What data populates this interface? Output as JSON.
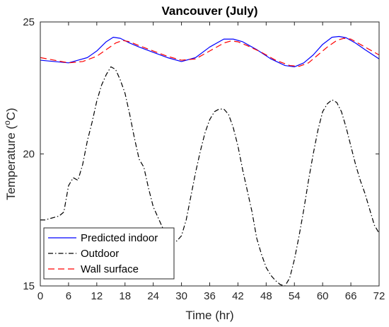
{
  "chart_data": {
    "type": "line",
    "title": "Vancouver (July)",
    "xlabel": "Time (hr)",
    "ylabel_main": "Temperature (",
    "ylabel_sup": "o",
    "ylabel_end": "C)",
    "xlim": [
      0,
      72
    ],
    "ylim": [
      15,
      25
    ],
    "xticks": [
      0,
      6,
      12,
      18,
      24,
      30,
      36,
      42,
      48,
      54,
      60,
      66,
      72
    ],
    "yticks": [
      15,
      20,
      25
    ],
    "grid": false,
    "legend_position": "bottom-left",
    "series": [
      {
        "name": "Predicted indoor",
        "color": "#0000ff",
        "dash": "solid",
        "x": [
          0,
          3,
          6,
          8,
          10,
          12,
          14,
          15.5,
          17,
          19,
          21,
          24,
          27,
          30,
          33,
          36,
          39,
          41,
          43,
          46,
          49,
          52,
          54,
          56,
          58,
          60,
          62,
          63.5,
          65,
          67,
          69,
          72
        ],
        "y": [
          23.55,
          23.5,
          23.45,
          23.55,
          23.65,
          23.9,
          24.25,
          24.42,
          24.38,
          24.2,
          24.05,
          23.85,
          23.65,
          23.5,
          23.65,
          24.05,
          24.35,
          24.35,
          24.25,
          23.95,
          23.6,
          23.35,
          23.3,
          23.45,
          23.75,
          24.15,
          24.42,
          24.45,
          24.4,
          24.2,
          23.95,
          23.6
        ]
      },
      {
        "name": "Outdoor",
        "color": "#000000",
        "dash": "dashdot",
        "x": [
          0,
          1,
          2,
          3,
          4,
          5,
          6,
          7,
          8,
          9,
          10,
          11,
          12,
          13,
          14,
          15,
          16,
          17,
          18,
          19,
          20,
          21,
          22,
          23,
          24,
          25,
          26,
          27,
          28,
          29,
          30,
          31,
          32,
          33,
          34,
          35,
          36,
          37,
          38,
          39,
          40,
          41,
          42,
          43,
          44,
          45,
          46,
          47,
          48,
          49,
          50,
          51,
          52,
          53,
          54,
          55,
          56,
          57,
          58,
          59,
          60,
          61,
          62,
          63,
          64,
          65,
          66,
          67,
          68,
          69,
          70,
          71,
          72
        ],
        "y": [
          17.5,
          17.5,
          17.55,
          17.6,
          17.65,
          17.8,
          18.8,
          19.1,
          19.0,
          19.6,
          20.5,
          21.2,
          22.0,
          22.6,
          23.0,
          23.3,
          23.2,
          22.8,
          22.3,
          21.5,
          20.6,
          19.8,
          19.5,
          18.7,
          18.0,
          17.6,
          17.2,
          16.9,
          16.8,
          16.7,
          16.9,
          17.5,
          18.4,
          19.3,
          20.1,
          20.8,
          21.3,
          21.6,
          21.7,
          21.7,
          21.5,
          21.0,
          20.3,
          19.4,
          18.6,
          17.8,
          16.8,
          16.2,
          15.7,
          15.4,
          15.2,
          15.05,
          15.0,
          15.3,
          16.0,
          16.9,
          17.9,
          19.0,
          20.0,
          20.9,
          21.6,
          21.9,
          22.05,
          21.95,
          21.6,
          21.0,
          20.3,
          19.6,
          19.0,
          18.5,
          17.9,
          17.3,
          17.0
        ]
      },
      {
        "name": "Wall surface",
        "color": "#ff0000",
        "dash": "dashed",
        "x": [
          0,
          3,
          6,
          9,
          12,
          14,
          16,
          17.5,
          19,
          21,
          24,
          27,
          30,
          33,
          36,
          39,
          40.5,
          42,
          44,
          47,
          50,
          53,
          55,
          57,
          59,
          61,
          63,
          64.5,
          66,
          68,
          70,
          72
        ],
        "y": [
          23.65,
          23.55,
          23.45,
          23.5,
          23.7,
          23.95,
          24.2,
          24.3,
          24.25,
          24.1,
          23.9,
          23.7,
          23.55,
          23.6,
          23.9,
          24.2,
          24.28,
          24.25,
          24.1,
          23.85,
          23.55,
          23.35,
          23.32,
          23.45,
          23.75,
          24.05,
          24.3,
          24.38,
          24.35,
          24.15,
          23.95,
          23.75
        ]
      }
    ]
  }
}
